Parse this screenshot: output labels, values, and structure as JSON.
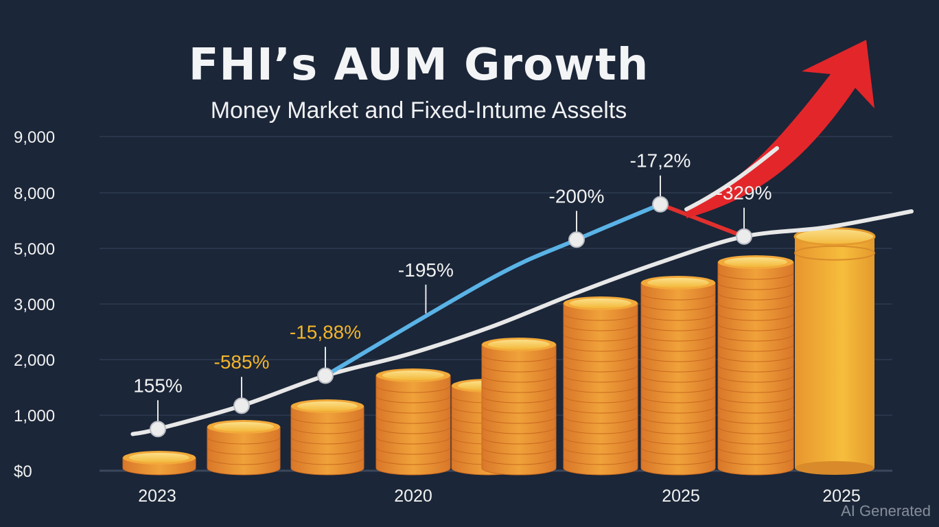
{
  "header": {
    "title": "FHI’s AUM Growth",
    "subtitle": "Money Market and Fixed-Intume Asselts"
  },
  "watermark": "AI Generated",
  "colors": {
    "background": "#1b2638",
    "gridline": "#2e3a50",
    "coin_light": "#f7c74a",
    "coin_dark": "#e5892a",
    "line_white": "#e8e8e8",
    "line_blue": "#5ab3e6",
    "line_red": "#e0302e",
    "arrow_red": "#e3262a",
    "label_yellow": "#f3b52b",
    "label_white": "#f2f2f2"
  },
  "chart_data": {
    "type": "bar",
    "title": "FHI’s AUM Growth",
    "subtitle": "Money Market and Fixed-Intume Asselts",
    "y_ticks": [
      "$0",
      "1,000",
      "2,000",
      "3,000",
      "5,000",
      "8,000",
      "9,000"
    ],
    "x_tick_labels": [
      "2023",
      "2020",
      "2025",
      "2025"
    ],
    "bars": [
      {
        "value": 300
      },
      {
        "value": 720
      },
      {
        "value": 1170
      },
      {
        "value": 1630
      },
      {
        "value": 1480
      },
      {
        "value": 2240
      },
      {
        "value": 3120
      },
      {
        "value": 3850
      },
      {
        "value": 4600
      },
      {
        "value": 5640
      }
    ],
    "trend_line": [
      {
        "x": 0.7,
        "y": 660
      },
      {
        "x": 1.0,
        "y": 750
      },
      {
        "x": 2.0,
        "y": 1170
      },
      {
        "x": 3.0,
        "y": 1710
      },
      {
        "x": 4.0,
        "y": 2100
      },
      {
        "x": 5.0,
        "y": 2600
      },
      {
        "x": 6.0,
        "y": 3400
      },
      {
        "x": 7.0,
        "y": 4500
      },
      {
        "x": 8.0,
        "y": 5640
      },
      {
        "x": 9.0,
        "y": 6150
      },
      {
        "x": 10.0,
        "y": 7000
      }
    ],
    "blue_line": [
      {
        "x": 3.0,
        "y": 1710
      },
      {
        "x": 5.0,
        "y": 3950
      },
      {
        "x": 6.0,
        "y": 5470
      },
      {
        "x": 7.0,
        "y": 7380
      }
    ],
    "red_line": [
      {
        "x": 7.0,
        "y": 7380
      },
      {
        "x": 8.0,
        "y": 5640
      }
    ],
    "markers": [
      {
        "x": 1.0,
        "y": 750,
        "label": "155%",
        "color": "white"
      },
      {
        "x": 2.0,
        "y": 1170,
        "label": "-585%",
        "color": "yellow"
      },
      {
        "x": 3.0,
        "y": 1710,
        "label": "-15,88%",
        "color": "yellow"
      },
      {
        "x": 4.2,
        "y": 2830,
        "label": "-195%",
        "color": "white",
        "no_dot": true
      },
      {
        "x": 6.0,
        "y": 5470,
        "label": "-200%",
        "color": "white"
      },
      {
        "x": 7.0,
        "y": 7380,
        "label": "-17,2%",
        "color": "white"
      },
      {
        "x": 8.0,
        "y": 5640,
        "label": "-329%",
        "color": "white"
      }
    ]
  }
}
